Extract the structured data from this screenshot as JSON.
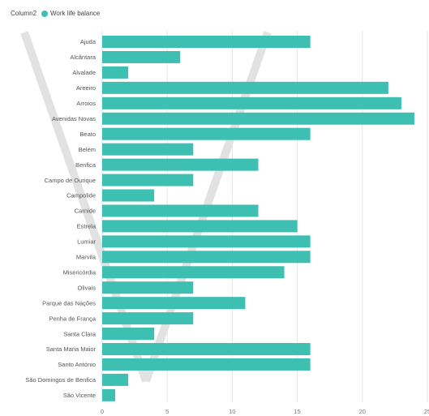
{
  "legend": {
    "title": "Column2",
    "series_label": "Work life balance"
  },
  "colors": {
    "bar": "#3dbfb2",
    "grid": "#e6e6e6",
    "watermark": "#e2e2e2"
  },
  "chart_data": {
    "type": "bar",
    "orientation": "horizontal",
    "categories": [
      "Ajuda",
      "Alcântara",
      "Alvalade",
      "Areeiro",
      "Arroios",
      "Avenidas Novas",
      "Beato",
      "Belém",
      "Benfica",
      "Campo de Ourique",
      "Campolide",
      "Carnide",
      "Estrela",
      "Lumiar",
      "Marvila",
      "Misericórdia",
      "Olivais",
      "Parque das Nações",
      "Penha de França",
      "Santa Clara",
      "Santa Maria Maior",
      "Santo António",
      "São Domingos de Benfica",
      "São Vicente"
    ],
    "series": [
      {
        "name": "Work life balance",
        "values": [
          16,
          6,
          2,
          22,
          23,
          24,
          16,
          7,
          12,
          7,
          4,
          12,
          15,
          16,
          16,
          14,
          7,
          11,
          7,
          4,
          16,
          16,
          2,
          1
        ]
      }
    ],
    "xlim": [
      0,
      25
    ],
    "x_ticks": [
      0,
      5,
      10,
      15,
      20,
      25
    ],
    "x_tick_labels": [
      "0",
      "5",
      "10",
      "15",
      "20",
      "25"
    ],
    "grid": true,
    "legend_position": "top-left"
  }
}
